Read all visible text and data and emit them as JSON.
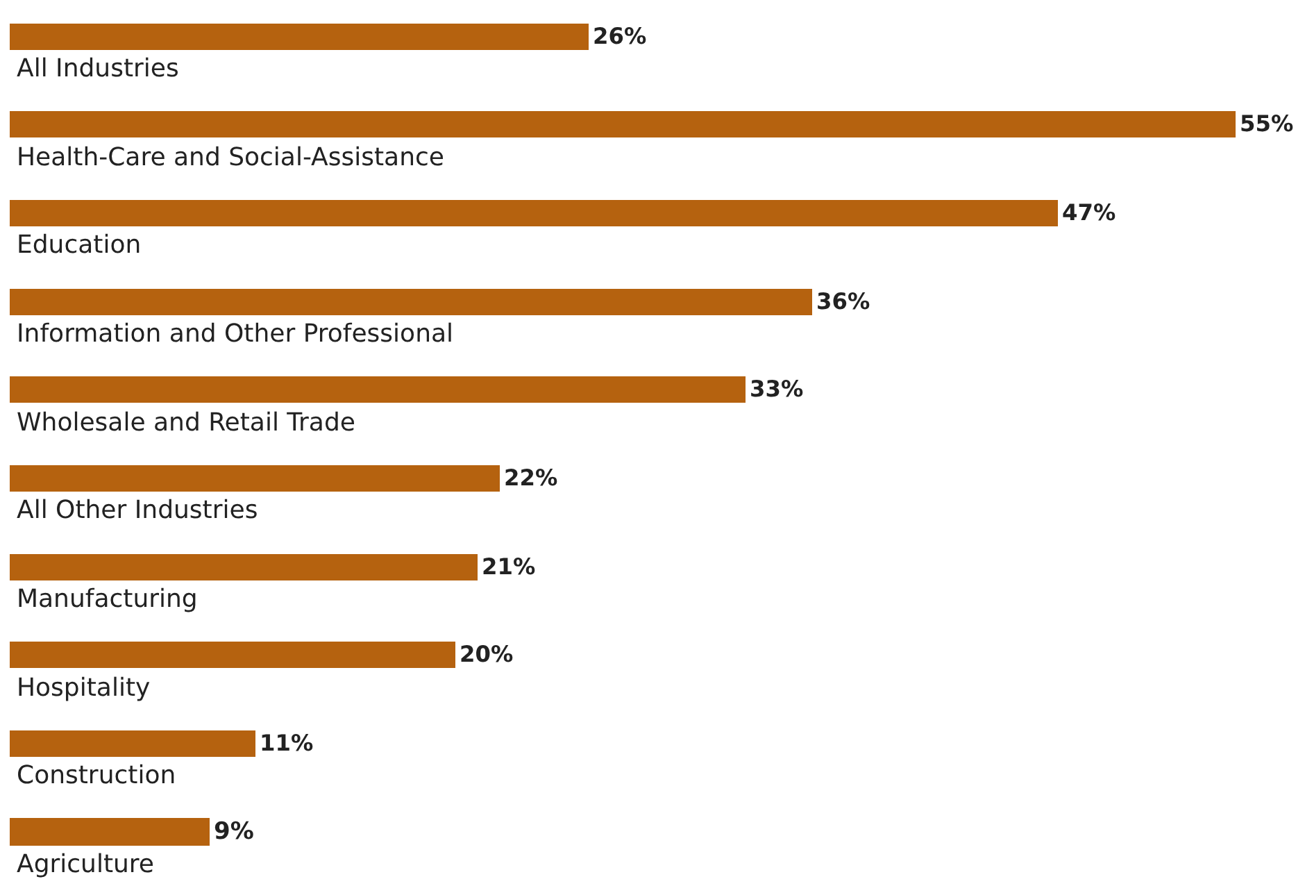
{
  "chart_data": {
    "type": "bar",
    "orientation": "horizontal",
    "categories": [
      "All Industries",
      "Health-Care and Social-Assistance",
      "Education",
      "Information and Other Professional",
      "Wholesale and Retail Trade",
      "All Other Industries",
      "Manufacturing",
      "Hospitality",
      "Construction",
      "Agriculture"
    ],
    "values": [
      26,
      55,
      47,
      36,
      33,
      22,
      21,
      20,
      11,
      9
    ],
    "value_labels": [
      "26%",
      "55%",
      "47%",
      "36%",
      "33%",
      "22%",
      "21%",
      "20%",
      "11%",
      "9%"
    ],
    "color": "#b5620f",
    "legend": false
  }
}
